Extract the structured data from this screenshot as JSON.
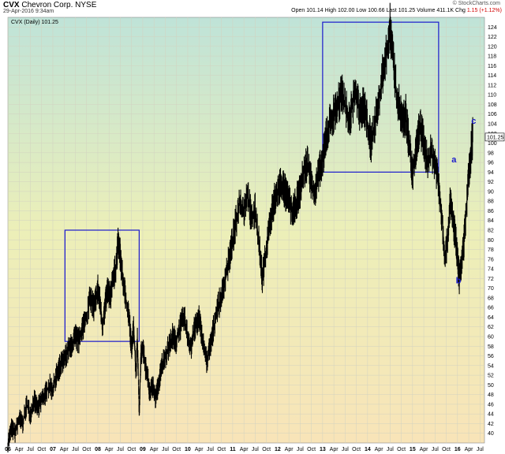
{
  "header": {
    "symbol": "CVX",
    "name": "Chevron Corp.",
    "exchange": "NYSE",
    "timestamp": "29-Apr-2016 9:34am",
    "brand": "© StockCharts.com",
    "quote": {
      "open_label": "Open",
      "open": "101.14",
      "high_label": "High",
      "high": "102.00",
      "low_label": "Low",
      "low": "100.66",
      "last_label": "Last",
      "last": "101.25",
      "volume_label": "Volume",
      "volume": "411.1K",
      "chg_label": "Chg",
      "chg": "1.15",
      "chg_pct": "(+1.12%)"
    }
  },
  "chart_data": {
    "type": "line",
    "title": "CVX Chevron Corp. NYSE",
    "legend": "CVX (Daily) 101.25",
    "last_value_label": "101.25",
    "ylim": [
      38,
      126
    ],
    "y_ticks": [
      40,
      42,
      44,
      46,
      48,
      50,
      52,
      54,
      56,
      58,
      60,
      62,
      64,
      66,
      68,
      70,
      72,
      74,
      76,
      78,
      80,
      82,
      84,
      86,
      88,
      90,
      92,
      94,
      96,
      98,
      100,
      102,
      104,
      106,
      108,
      110,
      112,
      114,
      116,
      118,
      120,
      122,
      124
    ],
    "xlim": [
      2006.0,
      2016.6
    ],
    "x_ticks": [
      {
        "t": 2006.0,
        "label": "06",
        "year": true
      },
      {
        "t": 2006.25,
        "label": "Apr"
      },
      {
        "t": 2006.5,
        "label": "Jul"
      },
      {
        "t": 2006.75,
        "label": "Oct"
      },
      {
        "t": 2007.0,
        "label": "07",
        "year": true
      },
      {
        "t": 2007.25,
        "label": "Apr"
      },
      {
        "t": 2007.5,
        "label": "Jul"
      },
      {
        "t": 2007.75,
        "label": "Oct"
      },
      {
        "t": 2008.0,
        "label": "08",
        "year": true
      },
      {
        "t": 2008.25,
        "label": "Apr"
      },
      {
        "t": 2008.5,
        "label": "Jul"
      },
      {
        "t": 2008.75,
        "label": "Oct"
      },
      {
        "t": 2009.0,
        "label": "09",
        "year": true
      },
      {
        "t": 2009.25,
        "label": "Apr"
      },
      {
        "t": 2009.5,
        "label": "Jul"
      },
      {
        "t": 2009.75,
        "label": "Oct"
      },
      {
        "t": 2010.0,
        "label": "10",
        "year": true
      },
      {
        "t": 2010.25,
        "label": "Apr"
      },
      {
        "t": 2010.5,
        "label": "Jul"
      },
      {
        "t": 2010.75,
        "label": "Oct"
      },
      {
        "t": 2011.0,
        "label": "11",
        "year": true
      },
      {
        "t": 2011.25,
        "label": "Apr"
      },
      {
        "t": 2011.5,
        "label": "Jul"
      },
      {
        "t": 2011.75,
        "label": "Oct"
      },
      {
        "t": 2012.0,
        "label": "12",
        "year": true
      },
      {
        "t": 2012.25,
        "label": "Apr"
      },
      {
        "t": 2012.5,
        "label": "Jul"
      },
      {
        "t": 2012.75,
        "label": "Oct"
      },
      {
        "t": 2013.0,
        "label": "13",
        "year": true
      },
      {
        "t": 2013.25,
        "label": "Apr"
      },
      {
        "t": 2013.5,
        "label": "Jul"
      },
      {
        "t": 2013.75,
        "label": "Oct"
      },
      {
        "t": 2014.0,
        "label": "14",
        "year": true
      },
      {
        "t": 2014.25,
        "label": "Apr"
      },
      {
        "t": 2014.5,
        "label": "Jul"
      },
      {
        "t": 2014.75,
        "label": "Oct"
      },
      {
        "t": 2015.0,
        "label": "15",
        "year": true
      },
      {
        "t": 2015.25,
        "label": "Apr"
      },
      {
        "t": 2015.5,
        "label": "Jul"
      },
      {
        "t": 2015.75,
        "label": "Oct"
      },
      {
        "t": 2016.0,
        "label": "16",
        "year": true
      },
      {
        "t": 2016.25,
        "label": "Apr"
      },
      {
        "t": 2016.5,
        "label": "Jul"
      }
    ],
    "series": [
      {
        "values": [
          [
            2006.0,
            38
          ],
          [
            2006.08,
            41
          ],
          [
            2006.16,
            40
          ],
          [
            2006.25,
            43
          ],
          [
            2006.33,
            42
          ],
          [
            2006.42,
            46
          ],
          [
            2006.5,
            44
          ],
          [
            2006.58,
            47
          ],
          [
            2006.66,
            45
          ],
          [
            2006.75,
            47
          ],
          [
            2006.83,
            48
          ],
          [
            2006.92,
            50
          ],
          [
            2007.0,
            49
          ],
          [
            2007.08,
            52
          ],
          [
            2007.16,
            54
          ],
          [
            2007.25,
            55
          ],
          [
            2007.33,
            57
          ],
          [
            2007.42,
            58
          ],
          [
            2007.5,
            60
          ],
          [
            2007.58,
            59
          ],
          [
            2007.66,
            62
          ],
          [
            2007.75,
            64
          ],
          [
            2007.83,
            68
          ],
          [
            2007.92,
            66
          ],
          [
            2008.0,
            70
          ],
          [
            2008.05,
            67
          ],
          [
            2008.1,
            62
          ],
          [
            2008.16,
            66
          ],
          [
            2008.22,
            70
          ],
          [
            2008.28,
            68
          ],
          [
            2008.33,
            72
          ],
          [
            2008.4,
            74
          ],
          [
            2008.45,
            79
          ],
          [
            2008.5,
            77
          ],
          [
            2008.55,
            72
          ],
          [
            2008.62,
            68
          ],
          [
            2008.7,
            64
          ],
          [
            2008.75,
            57
          ],
          [
            2008.8,
            62
          ],
          [
            2008.85,
            52
          ],
          [
            2008.88,
            60
          ],
          [
            2008.92,
            44
          ],
          [
            2008.96,
            56
          ],
          [
            2009.0,
            58
          ],
          [
            2009.05,
            54
          ],
          [
            2009.1,
            52
          ],
          [
            2009.16,
            48
          ],
          [
            2009.22,
            50
          ],
          [
            2009.28,
            47
          ],
          [
            2009.35,
            50
          ],
          [
            2009.42,
            54
          ],
          [
            2009.5,
            56
          ],
          [
            2009.58,
            58
          ],
          [
            2009.66,
            60
          ],
          [
            2009.75,
            59
          ],
          [
            2009.83,
            62
          ],
          [
            2009.92,
            64
          ],
          [
            2010.0,
            60
          ],
          [
            2010.08,
            58
          ],
          [
            2010.16,
            62
          ],
          [
            2010.25,
            64
          ],
          [
            2010.33,
            59
          ],
          [
            2010.42,
            55
          ],
          [
            2010.5,
            58
          ],
          [
            2010.58,
            62
          ],
          [
            2010.66,
            66
          ],
          [
            2010.75,
            68
          ],
          [
            2010.83,
            72
          ],
          [
            2010.92,
            76
          ],
          [
            2011.0,
            80
          ],
          [
            2011.08,
            84
          ],
          [
            2011.16,
            88
          ],
          [
            2011.25,
            86
          ],
          [
            2011.33,
            90
          ],
          [
            2011.42,
            84
          ],
          [
            2011.5,
            86
          ],
          [
            2011.58,
            80
          ],
          [
            2011.66,
            72
          ],
          [
            2011.75,
            78
          ],
          [
            2011.83,
            84
          ],
          [
            2011.92,
            88
          ],
          [
            2012.0,
            90
          ],
          [
            2012.08,
            92
          ],
          [
            2012.16,
            90
          ],
          [
            2012.25,
            88
          ],
          [
            2012.33,
            85
          ],
          [
            2012.42,
            88
          ],
          [
            2012.5,
            90
          ],
          [
            2012.58,
            94
          ],
          [
            2012.66,
            96
          ],
          [
            2012.75,
            92
          ],
          [
            2012.83,
            90
          ],
          [
            2012.92,
            94
          ],
          [
            2013.0,
            96
          ],
          [
            2013.08,
            102
          ],
          [
            2013.16,
            104
          ],
          [
            2013.25,
            106
          ],
          [
            2013.33,
            108
          ],
          [
            2013.42,
            110
          ],
          [
            2013.5,
            108
          ],
          [
            2013.58,
            104
          ],
          [
            2013.66,
            108
          ],
          [
            2013.75,
            110
          ],
          [
            2013.83,
            106
          ],
          [
            2013.92,
            108
          ],
          [
            2014.0,
            104
          ],
          [
            2014.08,
            100
          ],
          [
            2014.16,
            104
          ],
          [
            2014.25,
            108
          ],
          [
            2014.33,
            114
          ],
          [
            2014.42,
            118
          ],
          [
            2014.5,
            124
          ],
          [
            2014.55,
            120
          ],
          [
            2014.62,
            112
          ],
          [
            2014.7,
            108
          ],
          [
            2014.78,
            104
          ],
          [
            2014.85,
            106
          ],
          [
            2014.92,
            100
          ],
          [
            2015.0,
            94
          ],
          [
            2015.08,
            98
          ],
          [
            2015.16,
            104
          ],
          [
            2015.25,
            100
          ],
          [
            2015.33,
            96
          ],
          [
            2015.42,
            98
          ],
          [
            2015.5,
            96
          ],
          [
            2015.58,
            92
          ],
          [
            2015.66,
            84
          ],
          [
            2015.72,
            76
          ],
          [
            2015.78,
            80
          ],
          [
            2015.84,
            88
          ],
          [
            2015.9,
            84
          ],
          [
            2015.96,
            80
          ],
          [
            2016.0,
            76
          ],
          [
            2016.04,
            72
          ],
          [
            2016.08,
            74
          ],
          [
            2016.13,
            78
          ],
          [
            2016.18,
            84
          ],
          [
            2016.24,
            92
          ],
          [
            2016.28,
            96
          ],
          [
            2016.32,
            100
          ],
          [
            2016.34,
            101.25
          ]
        ]
      }
    ],
    "annotations": [
      {
        "label": "a",
        "x": 2015.92,
        "y": 96
      },
      {
        "label": "b",
        "x": 2016.02,
        "y": 71
      },
      {
        "label": "c",
        "x": 2016.36,
        "y": 104
      }
    ],
    "boxes": [
      {
        "x0": 2007.27,
        "x1": 2008.92,
        "y0": 59,
        "y1": 82
      },
      {
        "x0": 2013.0,
        "x1": 2015.58,
        "y0": 94,
        "y1": 125
      }
    ],
    "grid": true,
    "legend_position": "top-left"
  },
  "colors": {
    "bg_top": "#bfe3d8",
    "bg_mid": "#ecefb8",
    "bg_bottom": "#f8e4b8",
    "price": "#000000",
    "box": "#1a1acc",
    "wave_label": "#1a1acc",
    "grid": "#d2d2c0"
  }
}
